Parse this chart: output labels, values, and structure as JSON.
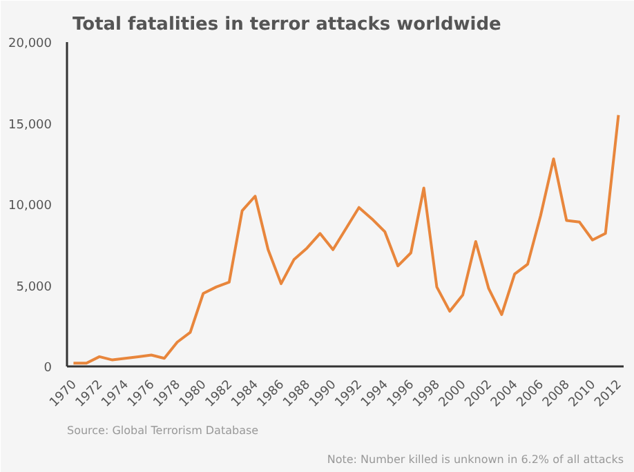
{
  "chart_data": {
    "type": "line",
    "title": "Total fatalities in terror attacks worldwide",
    "x": [
      1970,
      1971,
      1972,
      1973,
      1974,
      1975,
      1976,
      1977,
      1978,
      1979,
      1980,
      1981,
      1982,
      1983,
      1984,
      1985,
      1986,
      1987,
      1988,
      1989,
      1990,
      1991,
      1992,
      1993,
      1994,
      1995,
      1996,
      1997,
      1998,
      1999,
      2000,
      2001,
      2002,
      2003,
      2004,
      2005,
      2006,
      2007,
      2008,
      2009,
      2010,
      2011,
      2012
    ],
    "series": [
      {
        "color": "#e8863c",
        "values": [
          200,
          200,
          600,
          400,
          500,
          600,
          700,
          500,
          1500,
          2100,
          4500,
          4900,
          5200,
          9600,
          10500,
          7200,
          5100,
          6600,
          7300,
          8200,
          7200,
          8500,
          9800,
          9100,
          8300,
          6200,
          7000,
          11000,
          4900,
          3400,
          4400,
          7700,
          4800,
          3200,
          5700,
          6300,
          9300,
          12800,
          9000,
          8900,
          7800,
          8200,
          15500
        ]
      }
    ],
    "xlim": [
      1969.5,
      2012.4
    ],
    "xticks": [
      1970,
      1972,
      1974,
      1976,
      1978,
      1980,
      1982,
      1984,
      1986,
      1988,
      1990,
      1992,
      1994,
      1996,
      1998,
      2000,
      2002,
      2004,
      2006,
      2008,
      2010,
      2012
    ],
    "ylim": [
      0,
      20000
    ],
    "yticks": [
      0,
      {
        "value": 5000,
        "label": "5,000"
      },
      {
        "value": 10000,
        "label": "10,000"
      },
      {
        "value": 15000,
        "label": "15,000"
      },
      {
        "value": 20000,
        "label": "20,000"
      }
    ],
    "grid": false,
    "marker": "none",
    "line_style": "solid",
    "annotations": [
      "Source: Global Terrorism Database",
      "Note: Number killed is unknown in 6.2% of all attacks"
    ]
  }
}
